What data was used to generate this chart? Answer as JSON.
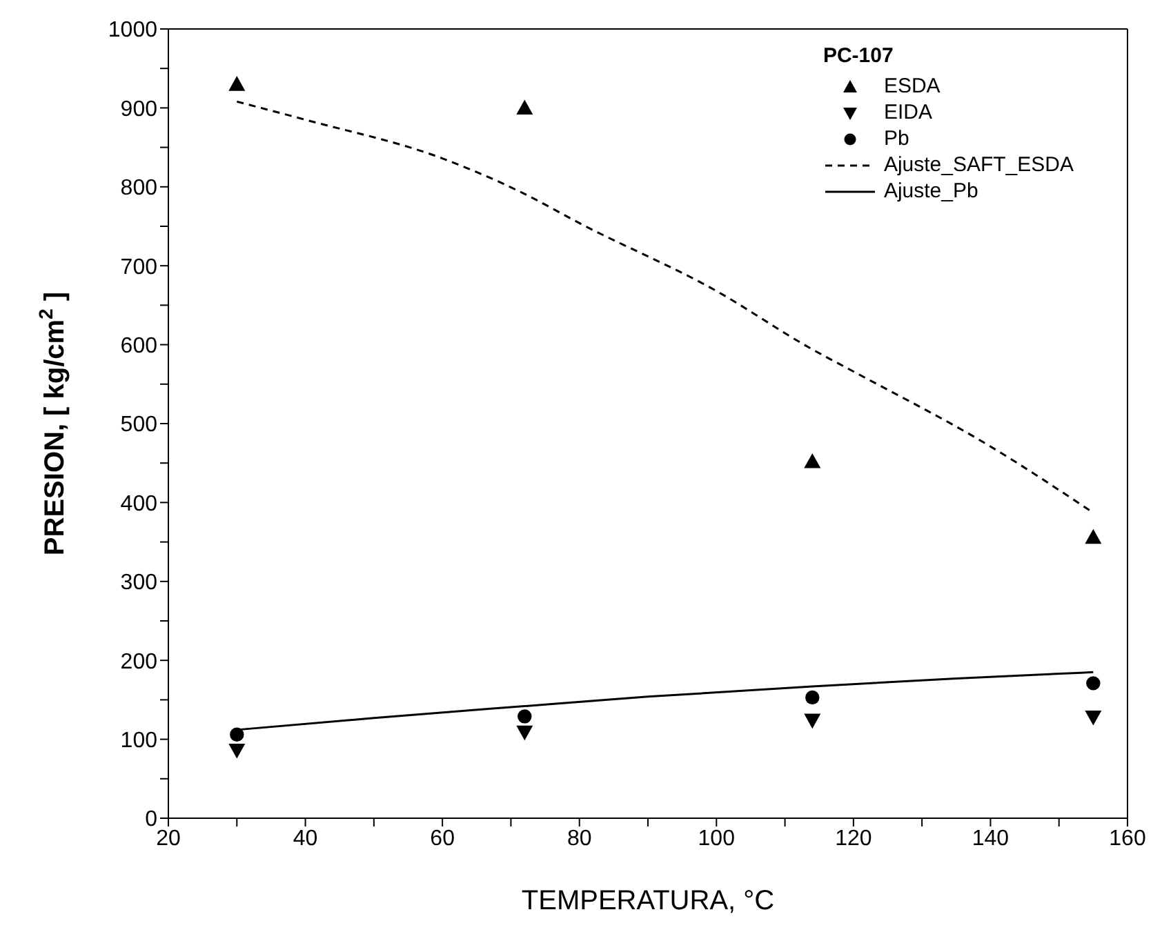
{
  "chart_data": {
    "type": "scatter",
    "xlabel": "TEMPERATURA, °C",
    "ylabel": "PRESION, [ kg/cm$^{2}$ ]",
    "legend_title": "PC-107",
    "legend": "top right",
    "grid": false,
    "xlim": [
      20,
      160
    ],
    "xticks": [
      20,
      {
        "value": 30,
        "label": null
      },
      40,
      {
        "value": 50,
        "label": null
      },
      60,
      {
        "value": 70,
        "label": null
      },
      80,
      {
        "value": 90,
        "label": null
      },
      100,
      {
        "value": 110,
        "label": null
      },
      120,
      {
        "value": 130,
        "label": null
      },
      140,
      {
        "value": 150,
        "label": null
      },
      160
    ],
    "ylim": [
      0,
      1000
    ],
    "yticks": [
      0,
      {
        "value": 50,
        "label": null
      },
      100,
      {
        "value": 150,
        "label": null
      },
      200,
      {
        "value": 250,
        "label": null
      },
      300,
      {
        "value": 350,
        "label": null
      },
      400,
      {
        "value": 450,
        "label": null
      },
      500,
      {
        "value": 550,
        "label": null
      },
      600,
      {
        "value": 650,
        "label": null
      },
      700,
      {
        "value": 750,
        "label": null
      },
      800,
      {
        "value": 850,
        "label": null
      },
      900,
      {
        "value": 950,
        "label": null
      },
      1000
    ],
    "series": [
      {
        "name": "ESDA",
        "marker": "triangle",
        "color": "#000000",
        "x": [
          30,
          72,
          114,
          155
        ],
        "values": [
          930,
          900,
          452,
          356
        ]
      },
      {
        "name": "EIDA",
        "marker": "triangle-down",
        "color": "#000000",
        "x": [
          30,
          72,
          114,
          155
        ],
        "values": [
          86,
          109,
          124,
          128
        ]
      },
      {
        "name": "Pb",
        "marker": "circle",
        "color": "#000000",
        "x": [
          30,
          72,
          114,
          155
        ],
        "values": [
          106,
          129,
          153,
          171
        ]
      },
      {
        "name": "Ajuste_SAFT_ESDA",
        "type": "line",
        "line_style": "dashed",
        "marker": "none",
        "color": "#000000",
        "x": [
          30,
          40,
          60,
          72,
          80,
          100,
          114,
          120,
          140,
          155
        ],
        "values": [
          908,
          885,
          836,
          791,
          754,
          668,
          594,
          566,
          471,
          387
        ]
      },
      {
        "name": "Ajuste_Pb",
        "type": "line",
        "line_style": "solid",
        "marker": "none",
        "color": "#000000",
        "x": [
          30,
          50,
          72,
          90,
          114,
          135,
          155
        ],
        "values": [
          112,
          127,
          142,
          154,
          167,
          177,
          185
        ]
      }
    ]
  }
}
